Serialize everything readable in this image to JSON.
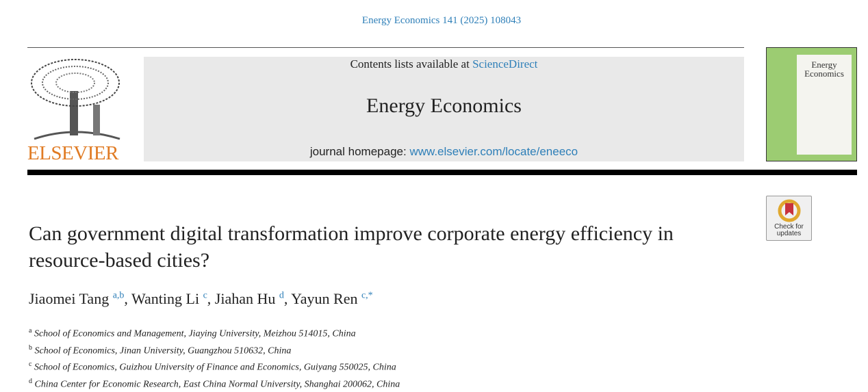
{
  "header": {
    "citation": "Energy Economics 141 (2025) 108043",
    "contents_prefix": "Contents lists available at",
    "contents_link": "ScienceDirect",
    "journal": "Energy Economics",
    "homepage_prefix": "journal homepage:",
    "homepage_link": "www.elsevier.com/locate/eneeco",
    "publisher": "ELSEVIER",
    "cover_title": "Energy Economics"
  },
  "badge": {
    "line1": "Check for",
    "line2": "updates"
  },
  "title": "Can government digital transformation improve corporate energy efficiency in resource-based cities?",
  "authors": [
    {
      "name": "Jiaomei Tang",
      "sup": "a,b"
    },
    {
      "name": "Wanting Li",
      "sup": "c"
    },
    {
      "name": "Jiahan Hu",
      "sup": "d"
    },
    {
      "name": "Yayun Ren",
      "sup": "c,*"
    }
  ],
  "affiliations": [
    {
      "label": "a",
      "text": "School of Economics and Management, Jiaying University, Meizhou 514015, China"
    },
    {
      "label": "b",
      "text": "School of Economics, Jinan University, Guangzhou 510632, China"
    },
    {
      "label": "c",
      "text": "School of Economics, Guizhou University of Finance and Economics, Guiyang 550025, China"
    },
    {
      "label": "d",
      "text": "China Center for Economic Research, East China Normal University, Shanghai 200062, China"
    }
  ]
}
